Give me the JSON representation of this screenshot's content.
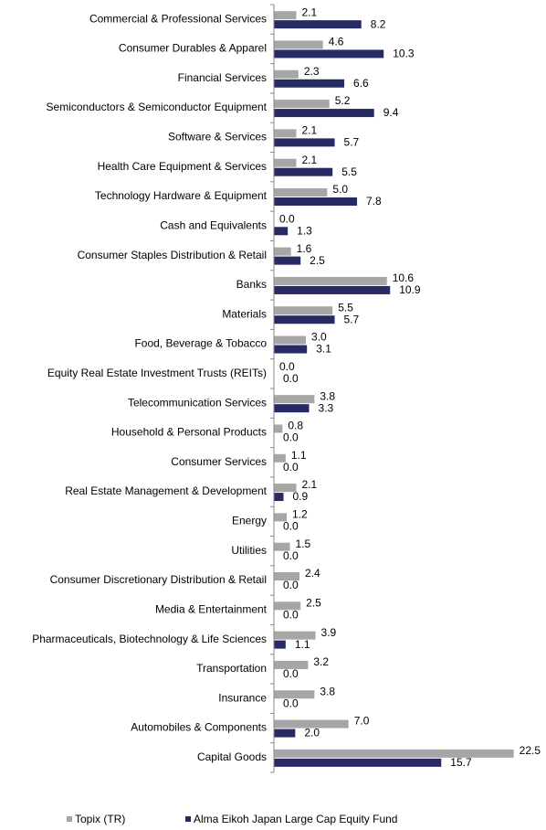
{
  "chart_data": {
    "type": "hbar",
    "categories": [
      "Commercial & Professional Services",
      "Consumer Durables & Apparel",
      "Financial Services",
      "Semiconductors & Semiconductor Equipment",
      "Software & Services",
      "Health Care Equipment & Services",
      "Technology Hardware & Equipment",
      "Cash and Equivalents",
      "Consumer Staples Distribution & Retail",
      "Banks",
      "Materials",
      "Food, Beverage & Tobacco",
      "Equity Real Estate Investment Trusts (REITs)",
      "Telecommunication Services",
      "Household & Personal Products",
      "Consumer Services",
      "Real Estate Management & Development",
      "Energy",
      "Utilities",
      "Consumer Discretionary Distribution & Retail",
      "Media & Entertainment",
      "Pharmaceuticals, Biotechnology & Life Sciences",
      "Transportation",
      "Insurance",
      "Automobiles & Components",
      "Capital Goods"
    ],
    "series": [
      {
        "name": "Topix (TR)",
        "color": "#a6a6a6",
        "values": [
          2.1,
          4.6,
          2.3,
          5.2,
          2.1,
          2.1,
          5.0,
          0,
          1.6,
          10.6,
          5.5,
          3.0,
          0,
          3.8,
          0.8,
          1.1,
          2.1,
          1.2,
          1.5,
          2.4,
          2.5,
          3.9,
          3.2,
          3.8,
          7.0,
          22.5
        ],
        "value_labels": [
          "2.1",
          "4.6",
          "2.3",
          "5.2",
          "2.1",
          "2.1",
          "5.0",
          "0.0",
          "1.6",
          "10.6",
          "5.5",
          "3.0",
          "0.0",
          "3.8",
          "0.8",
          "1.1",
          "2.1",
          "1.2",
          "1.5",
          "2.4",
          "2.5",
          "3.9",
          "3.2",
          "3.8",
          "7.0",
          "22.5"
        ]
      },
      {
        "name": "Alma Eikoh Japan Large Cap Equity Fund",
        "color": "#272b63",
        "values": [
          8.2,
          10.3,
          6.6,
          9.4,
          5.7,
          5.5,
          7.8,
          1.3,
          2.5,
          10.9,
          5.7,
          3.1,
          0,
          3.3,
          0,
          0,
          0.9,
          0,
          0,
          0,
          0,
          1.1,
          0,
          0,
          2.0,
          15.7
        ],
        "value_labels": [
          "8.2",
          "10.3",
          "6.6",
          "9.4",
          "5.7",
          "5.5",
          "7.8",
          "1.3",
          "2.5",
          "10.9",
          "5.7",
          "3.1",
          "0.0",
          "3.3",
          "0.0",
          "0.0",
          "0.9",
          "0.0",
          "0.0",
          "0.0",
          "0.0",
          "1.1",
          "0.0",
          "0.0",
          "2.0",
          "15.7"
        ]
      }
    ],
    "xlim": [
      0,
      24.5
    ]
  }
}
